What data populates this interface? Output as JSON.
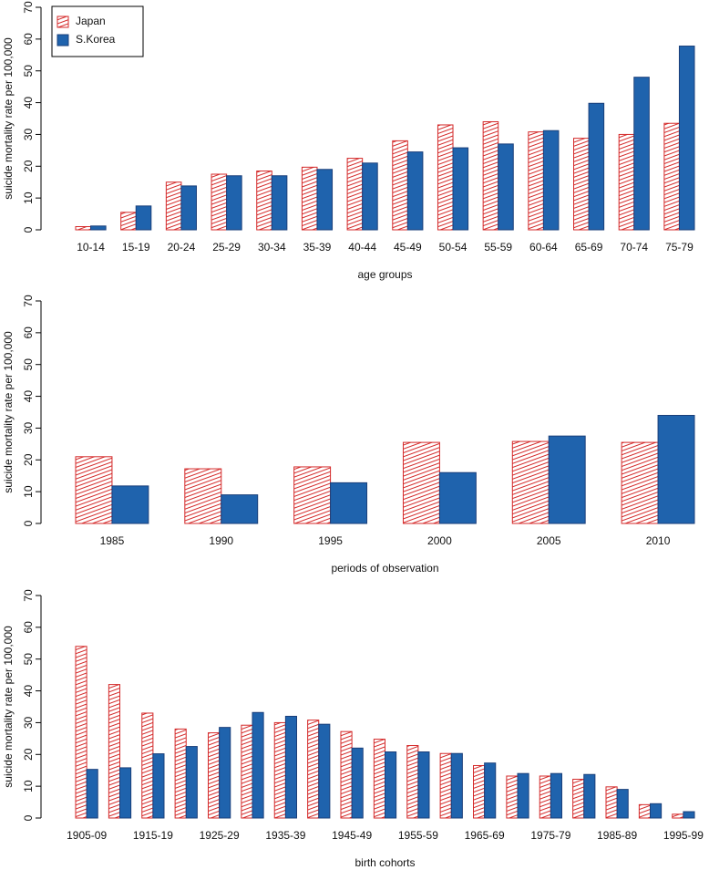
{
  "chart_data": [
    {
      "type": "bar",
      "y_label": "suicide mortality rate per 100,000",
      "x_label": "age groups",
      "categories": [
        "10-14",
        "15-19",
        "20-24",
        "25-29",
        "30-34",
        "35-39",
        "40-44",
        "45-49",
        "50-54",
        "55-59",
        "60-64",
        "65-69",
        "70-74",
        "75-79"
      ],
      "series": [
        {
          "name": "Japan",
          "color": "#d42a2a",
          "hatched": true,
          "values": [
            1,
            5.5,
            15,
            17.5,
            18.5,
            19.7,
            22.5,
            28,
            33,
            34,
            30.8,
            28.8,
            30,
            33.5
          ]
        },
        {
          "name": "S.Korea",
          "color": "#1f63ad",
          "hatched": false,
          "values": [
            1.2,
            7.5,
            13.8,
            17,
            17,
            19,
            21,
            24.5,
            25.8,
            27,
            31.2,
            39.8,
            48,
            57.8
          ]
        }
      ],
      "ylim": [
        0,
        70
      ],
      "yticks": [
        0,
        10,
        20,
        30,
        40,
        50,
        60,
        70
      ],
      "legend": "top-left"
    },
    {
      "type": "bar",
      "y_label": "suicide mortality rate per 100,000",
      "x_label": "periods of observation",
      "categories": [
        "1985",
        "1990",
        "1995",
        "2000",
        "2005",
        "2010"
      ],
      "series": [
        {
          "color": "#d42a2a",
          "hatched": true,
          "values": [
            21,
            17.2,
            17.8,
            25.5,
            25.8,
            25.5
          ]
        },
        {
          "color": "#1f63ad",
          "hatched": false,
          "values": [
            11.8,
            9,
            12.8,
            16,
            27.5,
            34
          ]
        }
      ],
      "ylim": [
        0,
        70
      ],
      "yticks": [
        0,
        10,
        20,
        30,
        40,
        50,
        60,
        70
      ]
    },
    {
      "type": "bar",
      "y_label": "suicide mortality rate per 100,000",
      "x_label": "birth cohorts",
      "categories": [
        "1905-09",
        null,
        "1915-19",
        null,
        "1925-29",
        null,
        "1935-39",
        null,
        "1945-49",
        null,
        "1955-59",
        null,
        "1965-69",
        null,
        "1975-79",
        null,
        "1985-89",
        null,
        "1995-99"
      ],
      "series": [
        {
          "color": "#d42a2a",
          "hatched": true,
          "values": [
            54,
            42,
            33,
            28,
            26.8,
            29.2,
            30,
            30.8,
            27.2,
            24.8,
            22.8,
            20.3,
            16.5,
            13.2,
            13.2,
            12.2,
            9.8,
            4.2,
            1.2
          ]
        },
        {
          "color": "#1f63ad",
          "hatched": false,
          "values": [
            15.3,
            15.8,
            20.2,
            22.5,
            28.5,
            33.2,
            32,
            29.5,
            22,
            20.8,
            20.8,
            20.3,
            17.3,
            14,
            14,
            13.7,
            9,
            4.5,
            2
          ]
        }
      ],
      "ylim": [
        0,
        70
      ],
      "yticks": [
        0,
        10,
        20,
        30,
        40,
        50,
        60,
        70
      ]
    }
  ]
}
